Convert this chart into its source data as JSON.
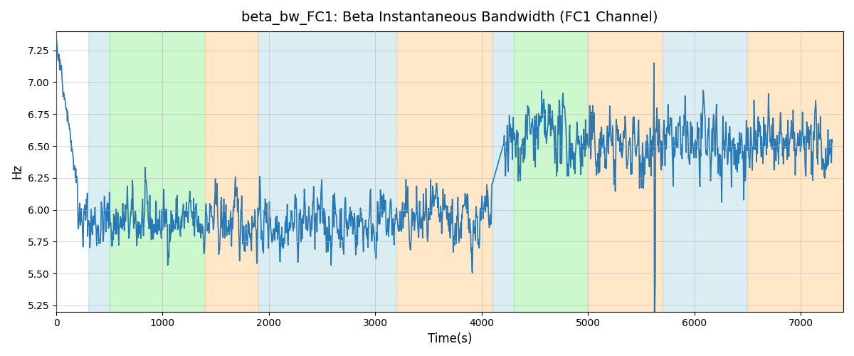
{
  "title": "beta_bw_FC1: Beta Instantaneous Bandwidth (FC1 Channel)",
  "xlabel": "Time(s)",
  "ylabel": "Hz",
  "ylim": [
    5.2,
    7.4
  ],
  "xlim": [
    0,
    7400
  ],
  "line_color": "#2878b5",
  "line_width": 1.2,
  "background_color": "#ffffff",
  "grid_color": "#b0b0b0",
  "regions": [
    {
      "start": 300,
      "end": 500,
      "color": "#add8e6",
      "alpha": 0.45
    },
    {
      "start": 500,
      "end": 1400,
      "color": "#90ee90",
      "alpha": 0.45
    },
    {
      "start": 1400,
      "end": 1900,
      "color": "#ffd59a",
      "alpha": 0.55
    },
    {
      "start": 1900,
      "end": 3200,
      "color": "#add8e6",
      "alpha": 0.45
    },
    {
      "start": 3200,
      "end": 4100,
      "color": "#ffd59a",
      "alpha": 0.55
    },
    {
      "start": 4100,
      "end": 4300,
      "color": "#add8e6",
      "alpha": 0.45
    },
    {
      "start": 4300,
      "end": 5000,
      "color": "#90ee90",
      "alpha": 0.45
    },
    {
      "start": 5000,
      "end": 5700,
      "color": "#ffd59a",
      "alpha": 0.55
    },
    {
      "start": 5700,
      "end": 6500,
      "color": "#add8e6",
      "alpha": 0.45
    },
    {
      "start": 6500,
      "end": 7400,
      "color": "#ffd59a",
      "alpha": 0.55
    }
  ],
  "seed": 42,
  "title_fontsize": 14
}
